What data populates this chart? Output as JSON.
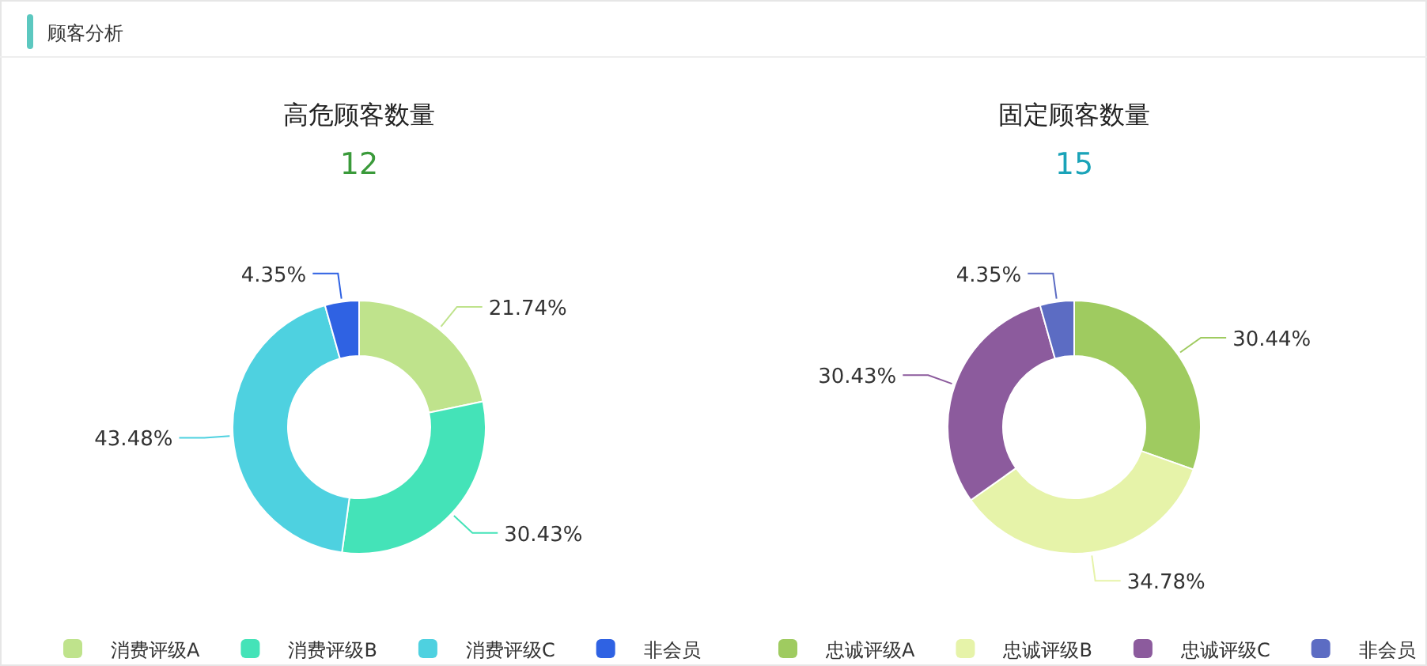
{
  "chart_data": [
    {
      "type": "other",
      "title": "顾客分析"
    },
    {
      "type": "donut",
      "title": "高危顾客数量",
      "subtitle": "12",
      "categories": [
        "消费评级A",
        "消费评级B",
        "消费评级C",
        "非会员"
      ],
      "values": [
        21.74,
        30.43,
        43.48,
        4.35
      ],
      "colors": [
        "#bfe38c",
        "#44e3b8",
        "#4ed1e0",
        "#2f62e3"
      ],
      "value_labels": [
        "21.74%",
        "30.43%",
        "43.48%",
        "4.35%"
      ],
      "legend": "bottom"
    },
    {
      "type": "donut",
      "title": "固定顾客数量",
      "subtitle": "15",
      "categories": [
        "忠诚评级A",
        "忠诚评级B",
        "忠诚评级C",
        "非会员"
      ],
      "values": [
        30.44,
        34.78,
        30.43,
        4.35
      ],
      "colors": [
        "#9fcb60",
        "#e6f3a9",
        "#8c5b9d",
        "#5c6cc3"
      ],
      "value_labels": [
        "30.44%",
        "34.78%",
        "30.43%",
        "4.35%"
      ],
      "legend": "bottom"
    }
  ]
}
